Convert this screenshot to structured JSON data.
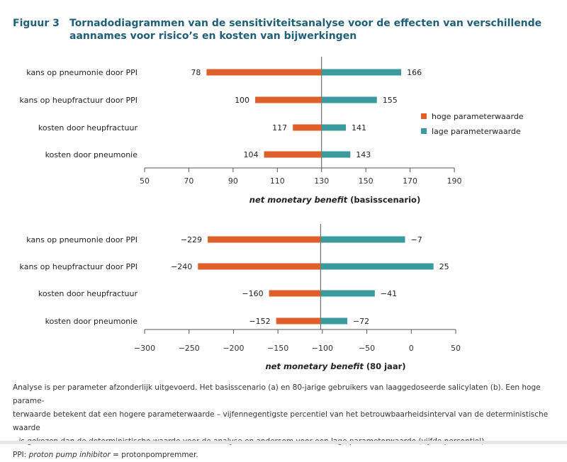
{
  "figure": {
    "label": "Figuur 3",
    "title": "Tornadodiagrammen van de sensitiviteitsanalyse voor de effecten van verschillende aannames voor risico’s en kosten van bijwerkingen"
  },
  "legend": {
    "high_label": "hoge parameterwaarde",
    "low_label": "lage parameterwaarde"
  },
  "colors": {
    "high": "#df5f2b",
    "low": "#3a9a9e",
    "axis": "#555555",
    "header": "#1f5f78"
  },
  "chart_data": [
    {
      "type": "bar",
      "orientation": "horizontal",
      "style": "tornado",
      "baseline": 130,
      "categories": [
        "kans op pneumonie door PPI",
        "kans op heupfractuur door PPI",
        "kosten door heupfractuur",
        "kosten door pneumonie"
      ],
      "series": [
        {
          "name": "hoge parameterwaarde",
          "values": [
            78,
            100,
            117,
            104
          ]
        },
        {
          "name": "lage parameterwaarde",
          "values": [
            166,
            155,
            141,
            143
          ]
        }
      ],
      "xlim": [
        50,
        190
      ],
      "xticks": [
        50,
        70,
        90,
        110,
        130,
        150,
        170,
        190
      ],
      "xlabel": {
        "italic": "net monetary benefit",
        "plain": " (basisscenario)"
      }
    },
    {
      "type": "bar",
      "orientation": "horizontal",
      "style": "tornado",
      "baseline": -102,
      "categories": [
        "kans op pneumonie door PPI",
        "kans op heupfractuur door PPI",
        "kosten door heupfractuur",
        "kosten door pneumonie"
      ],
      "series": [
        {
          "name": "hoge parameterwaarde",
          "values": [
            -229,
            -240,
            -160,
            -152
          ]
        },
        {
          "name": "lage parameterwaarde",
          "values": [
            -7,
            25,
            -41,
            -72
          ]
        }
      ],
      "xlim": [
        -300,
        50
      ],
      "xticks": [
        -300,
        -250,
        -200,
        -150,
        -100,
        -50,
        0,
        50
      ],
      "xtick_labels": [
        "−300",
        "−250",
        "−200",
        "−150",
        "−100",
        "−50",
        "0",
        "50"
      ],
      "xlabel": {
        "italic": "net monetary benefit",
        "plain": " (80 jaar)"
      }
    }
  ],
  "footnote": {
    "line1": "Analyse is per parameter afzonderlijk uitgevoerd. Het basisscenario (a) en 80-jarige gebruikers van laaggedoseerde salicylaten (b). Een hoge parame-",
    "line2": "terwaarde betekent dat een hogere parameterwaarde – vijfennegentigste percentiel van het betrouwbaarheidsinterval van de deterministische waarde",
    "line3": "– is gekozen dan de deterministische waarde voor de analyse en andersom voor een lage parameterwaarde (vijfde percentiel).",
    "ppi_prefix": "PPI: ",
    "ppi_italic": "proton pump inhibitor",
    "ppi_suffix": " = protonpompremmer."
  }
}
